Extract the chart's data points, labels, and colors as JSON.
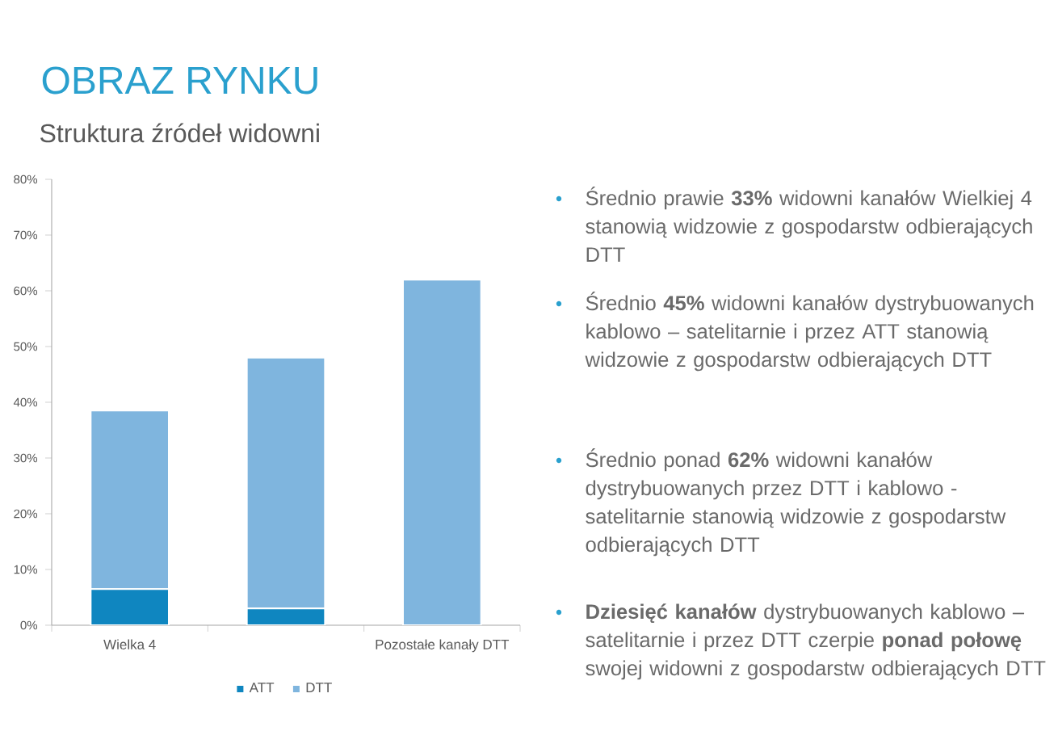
{
  "chart_data": {
    "type": "bar",
    "stacked": true,
    "title": "OBRAZ RYNKU",
    "subtitle": "Struktura źródeł widowni",
    "categories": [
      "Wielka 4",
      null,
      "Pozostałe kanały DTT"
    ],
    "series": [
      {
        "name": "ATT",
        "color": "#0f86c0",
        "values": [
          6.5,
          3,
          0
        ]
      },
      {
        "name": "DTT",
        "color": "#7fb5de",
        "values": [
          32,
          45,
          62
        ]
      }
    ],
    "ylim": [
      0,
      80
    ],
    "yticks": [
      {
        "value": 0,
        "label": "0%"
      },
      {
        "value": 10,
        "label": "10%"
      },
      {
        "value": 20,
        "label": "20%"
      },
      {
        "value": 30,
        "label": "30%"
      },
      {
        "value": 40,
        "label": "40%"
      },
      {
        "value": 50,
        "label": "50%"
      },
      {
        "value": 60,
        "label": "60%"
      },
      {
        "value": 70,
        "label": "70%"
      },
      {
        "value": 80,
        "label": "80%"
      }
    ],
    "legend": "bottom",
    "annotations": [
      "Średnio prawie **33%** widowni kanałów Wielkiej 4 stanowią widzowie z gospodarstw odbierających DTT",
      "Średnio **45%** widowni kanałów dystrybuowanych kablowo – satelitarnie i przez ATT stanowią widzowie z gospodarstw odbierających DTT",
      "Średnio ponad **62%** widowni kanałów dystrybuowanych przez DTT i kablowo - satelitarnie stanowią widzowie z gospodarstw odbierających DTT",
      "**Dziesięć kanałów** dystrybuowanych kablowo – satelitarnie i przez DTT czerpie **ponad połowę** swojej widowni z gospodarstw odbierających DTT"
    ]
  }
}
